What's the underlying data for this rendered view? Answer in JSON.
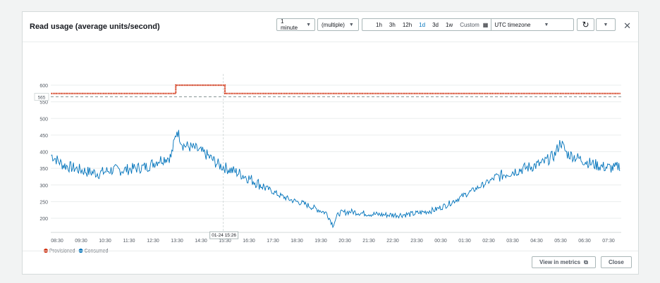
{
  "header": {
    "title": "Read usage (average units/second)",
    "period": "1 minute",
    "statistic": "(multiple)",
    "ranges": [
      "1h",
      "3h",
      "12h",
      "1d",
      "3d",
      "1w"
    ],
    "selected_range": "1d",
    "custom": "Custom",
    "timezone": "UTC timezone"
  },
  "footer": {
    "view_in_metrics": "View in metrics",
    "close": "Close"
  },
  "chart_data": {
    "type": "line",
    "title": "Read usage (average units/second)",
    "x_ticks": [
      "08:30",
      "09:30",
      "10:30",
      "11:30",
      "12:30",
      "13:30",
      "14:30",
      "15:30",
      "16:30",
      "17:30",
      "18:30",
      "19:30",
      "20:30",
      "21:30",
      "22:30",
      "23:30",
      "00:30",
      "01:30",
      "02:30",
      "03:30",
      "04:30",
      "05:30",
      "06:30",
      "07:30"
    ],
    "y_ticks": [
      200,
      250,
      300,
      350,
      400,
      450,
      500,
      550,
      600
    ],
    "ylim": [
      170,
      615
    ],
    "x_unit": "hours since 08:30",
    "series": [
      {
        "name": "Provisioned",
        "color": "#d13212",
        "style": "dotted",
        "points": [
          [
            -0.25,
            575
          ],
          [
            4.95,
            575
          ],
          [
            4.95,
            600
          ],
          [
            7.0,
            600
          ],
          [
            7.0,
            575
          ],
          [
            23.5,
            575
          ]
        ]
      },
      {
        "name": "Consumed",
        "color": "#0073bb",
        "points": [
          [
            -0.25,
            390
          ],
          [
            0.25,
            360
          ],
          [
            0.75,
            350
          ],
          [
            1.25,
            340
          ],
          [
            1.75,
            335
          ],
          [
            2.25,
            345
          ],
          [
            2.75,
            345
          ],
          [
            3.25,
            350
          ],
          [
            3.75,
            355
          ],
          [
            4.25,
            375
          ],
          [
            4.75,
            385
          ],
          [
            5.0,
            465
          ],
          [
            5.25,
            420
          ],
          [
            5.75,
            410
          ],
          [
            6.25,
            390
          ],
          [
            6.75,
            360
          ],
          [
            7.25,
            345
          ],
          [
            7.75,
            330
          ],
          [
            8.25,
            310
          ],
          [
            8.75,
            290
          ],
          [
            9.25,
            270
          ],
          [
            9.75,
            255
          ],
          [
            10.25,
            245
          ],
          [
            10.75,
            230
          ],
          [
            11.25,
            215
          ],
          [
            11.5,
            180
          ],
          [
            11.75,
            215
          ],
          [
            12.25,
            220
          ],
          [
            12.75,
            215
          ],
          [
            13.25,
            212
          ],
          [
            13.75,
            210
          ],
          [
            14.25,
            210
          ],
          [
            14.75,
            212
          ],
          [
            15.25,
            218
          ],
          [
            15.75,
            225
          ],
          [
            16.25,
            240
          ],
          [
            16.75,
            260
          ],
          [
            17.25,
            280
          ],
          [
            17.75,
            300
          ],
          [
            18.25,
            320
          ],
          [
            18.75,
            335
          ],
          [
            19.25,
            345
          ],
          [
            19.75,
            355
          ],
          [
            20.25,
            365
          ],
          [
            20.75,
            390
          ],
          [
            21.0,
            430
          ],
          [
            21.25,
            395
          ],
          [
            21.75,
            380
          ],
          [
            22.25,
            365
          ],
          [
            22.75,
            355
          ],
          [
            23.25,
            350
          ],
          [
            23.5,
            360
          ]
        ]
      }
    ],
    "threshold": {
      "value": 565,
      "label": "565"
    },
    "crosshair": {
      "x": 6.93,
      "label": "01-24 15:26"
    },
    "legend": [
      "Provisioned",
      "Consumed"
    ]
  }
}
